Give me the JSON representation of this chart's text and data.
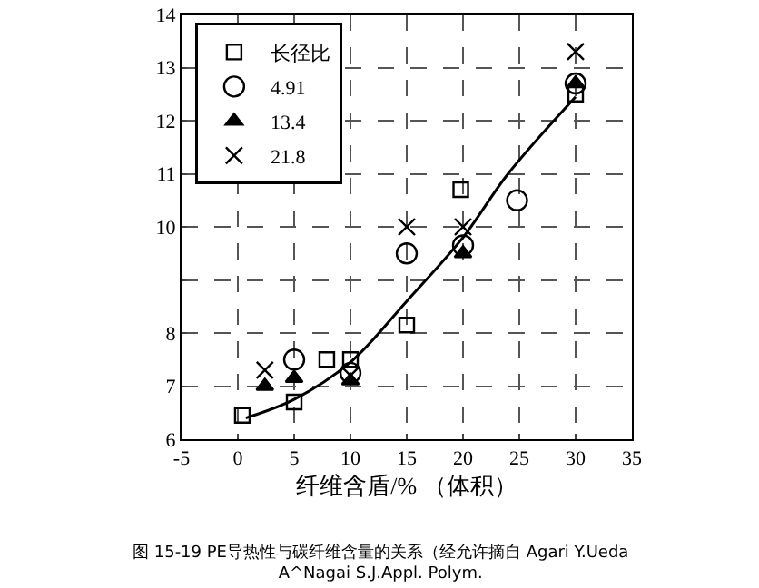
{
  "chart_data": {
    "type": "scatter",
    "xlabel": "纤维含盾/% （体积）",
    "xlim": [
      -5,
      35
    ],
    "xticks": [
      -5,
      0,
      5,
      10,
      15,
      20,
      25,
      30,
      35
    ],
    "ylim": [
      6,
      14
    ],
    "yticks": [
      6,
      7,
      8,
      {
        "value": 9,
        "label": null
      },
      10,
      11,
      12,
      13,
      14
    ],
    "grid": true,
    "legend": "top left",
    "series": [
      {
        "type": "line",
        "color": "#000000",
        "marker": "none",
        "x": [
          0.7,
          5,
          10,
          15,
          20,
          24,
          30
        ],
        "values": [
          6.4,
          6.75,
          7.45,
          8.6,
          9.8,
          11,
          12.45
        ]
      },
      {
        "name": "长径比",
        "color": "#000000",
        "marker": "square",
        "x": [
          0.4,
          5,
          7.9,
          10,
          15,
          19.8,
          30
        ],
        "values": [
          6.45,
          6.7,
          7.5,
          7.5,
          8.15,
          10.7,
          12.5
        ]
      },
      {
        "name": "4.91",
        "color": "#000000",
        "marker": "circle",
        "x": [
          5,
          10,
          15,
          20,
          24.8,
          30
        ],
        "values": [
          7.5,
          7.25,
          9.5,
          9.65,
          10.5,
          12.7
        ]
      },
      {
        "name": "13.4",
        "color": "#000000",
        "marker": "triangle",
        "x": [
          2.4,
          5,
          10,
          20,
          30
        ],
        "values": [
          7.0,
          7.15,
          7.1,
          9.5,
          12.7
        ]
      },
      {
        "name": "21.8",
        "color": "#000000",
        "marker": "cross",
        "x": [
          2.4,
          10,
          15,
          20,
          30
        ],
        "values": [
          7.3,
          7.2,
          10.0,
          10.0,
          13.3
        ]
      }
    ],
    "annotations": [
      "图 15-19 PE导热性与碳纤维含量的关系（经允许摘自 Agari Y.Ueda A^Nagai S.J.Appl. Polym."
    ]
  }
}
